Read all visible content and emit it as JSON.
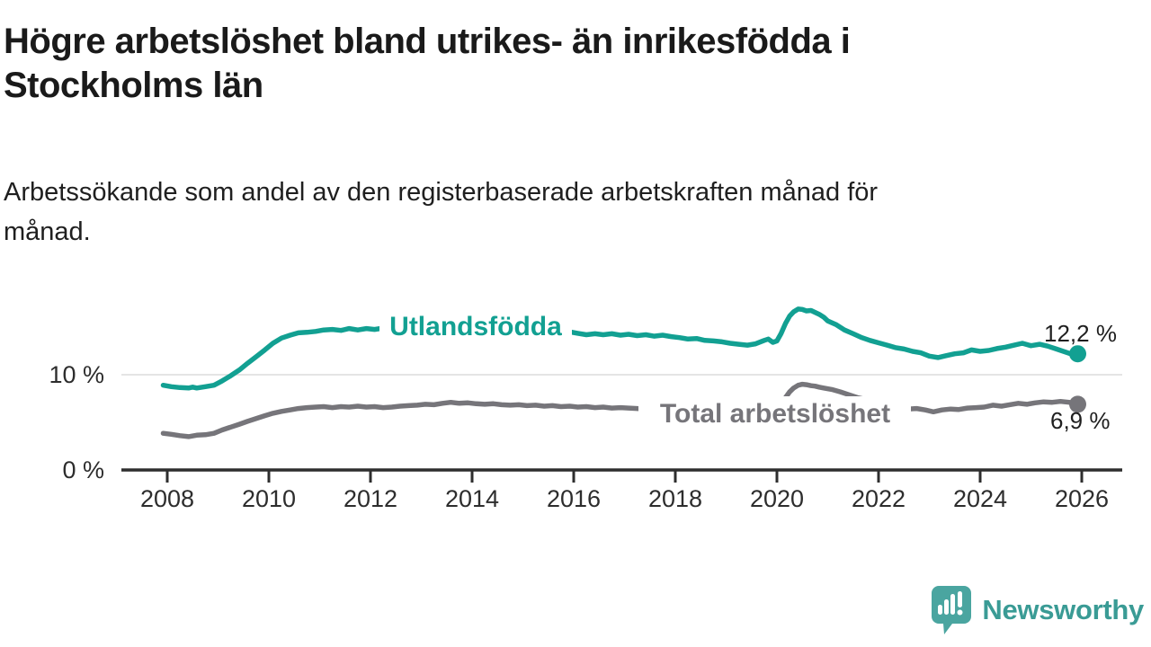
{
  "header": {
    "title_lines": [
      "Högre arbetslöshet bland utrikes- än inrikesfödda i",
      "Stockholms län"
    ],
    "subtitle_lines": [
      "Arbetssökande som andel av den registerbaserade arbetskraften månad för",
      "månad."
    ]
  },
  "chart_data": {
    "type": "line",
    "title": "Högre arbetslöshet bland utrikes- än inrikesfödda i Stockholms län",
    "subtitle": "Arbetssökande som andel av den registerbaserade arbetskraften månad för månad.",
    "unit": "%",
    "grid": "horizontal-only",
    "legend": "inline-line-labels",
    "x_axis": {
      "ticks": [
        2008,
        2010,
        2012,
        2014,
        2016,
        2018,
        2020,
        2022,
        2024,
        2026
      ],
      "range": [
        2007.1,
        2026.8
      ]
    },
    "y_axis": {
      "ticks": [
        {
          "value": 0,
          "label": "0 %"
        },
        {
          "value": 10,
          "label": "10 %"
        }
      ],
      "gridlines": [
        10
      ],
      "range": [
        0,
        18
      ]
    },
    "series": [
      {
        "name": "Utlandsfödda",
        "color": "#12a092",
        "end_value": 12.2,
        "end_label": "12,2 %",
        "points": [
          [
            2007.92,
            8.9
          ],
          [
            2008.08,
            8.75
          ],
          [
            2008.25,
            8.65
          ],
          [
            2008.42,
            8.6
          ],
          [
            2008.5,
            8.7
          ],
          [
            2008.58,
            8.6
          ],
          [
            2008.75,
            8.75
          ],
          [
            2008.92,
            8.9
          ],
          [
            2009.08,
            9.35
          ],
          [
            2009.25,
            9.9
          ],
          [
            2009.42,
            10.5
          ],
          [
            2009.58,
            11.2
          ],
          [
            2009.75,
            11.9
          ],
          [
            2009.92,
            12.6
          ],
          [
            2010.08,
            13.3
          ],
          [
            2010.25,
            13.85
          ],
          [
            2010.42,
            14.15
          ],
          [
            2010.58,
            14.4
          ],
          [
            2010.75,
            14.45
          ],
          [
            2010.92,
            14.55
          ],
          [
            2011.08,
            14.7
          ],
          [
            2011.25,
            14.75
          ],
          [
            2011.42,
            14.65
          ],
          [
            2011.58,
            14.85
          ],
          [
            2011.75,
            14.7
          ],
          [
            2011.92,
            14.85
          ],
          [
            2012.08,
            14.75
          ],
          [
            2012.25,
            14.9
          ],
          [
            2012.5,
            14.95
          ],
          [
            2012.75,
            15.0
          ],
          [
            2013.0,
            14.9
          ],
          [
            2013.25,
            15.05
          ],
          [
            2013.5,
            14.95
          ],
          [
            2013.75,
            15.05
          ],
          [
            2014.0,
            14.9
          ],
          [
            2014.25,
            14.85
          ],
          [
            2014.5,
            14.9
          ],
          [
            2014.75,
            14.8
          ],
          [
            2015.0,
            14.7
          ],
          [
            2015.25,
            14.75
          ],
          [
            2015.5,
            14.65
          ],
          [
            2015.75,
            14.55
          ],
          [
            2015.92,
            14.5
          ],
          [
            2016.08,
            14.35
          ],
          [
            2016.25,
            14.2
          ],
          [
            2016.42,
            14.3
          ],
          [
            2016.58,
            14.2
          ],
          [
            2016.75,
            14.3
          ],
          [
            2016.92,
            14.15
          ],
          [
            2017.08,
            14.25
          ],
          [
            2017.25,
            14.1
          ],
          [
            2017.42,
            14.2
          ],
          [
            2017.58,
            14.05
          ],
          [
            2017.75,
            14.15
          ],
          [
            2017.92,
            14.0
          ],
          [
            2018.08,
            13.9
          ],
          [
            2018.25,
            13.75
          ],
          [
            2018.42,
            13.8
          ],
          [
            2018.58,
            13.6
          ],
          [
            2018.75,
            13.55
          ],
          [
            2018.92,
            13.45
          ],
          [
            2019.08,
            13.3
          ],
          [
            2019.25,
            13.2
          ],
          [
            2019.42,
            13.1
          ],
          [
            2019.58,
            13.25
          ],
          [
            2019.75,
            13.6
          ],
          [
            2019.83,
            13.75
          ],
          [
            2019.92,
            13.4
          ],
          [
            2020.0,
            13.55
          ],
          [
            2020.08,
            14.3
          ],
          [
            2020.17,
            15.4
          ],
          [
            2020.25,
            16.15
          ],
          [
            2020.33,
            16.6
          ],
          [
            2020.42,
            16.9
          ],
          [
            2020.5,
            16.85
          ],
          [
            2020.58,
            16.7
          ],
          [
            2020.67,
            16.75
          ],
          [
            2020.75,
            16.55
          ],
          [
            2020.83,
            16.35
          ],
          [
            2020.92,
            16.05
          ],
          [
            2021.0,
            15.65
          ],
          [
            2021.17,
            15.25
          ],
          [
            2021.33,
            14.7
          ],
          [
            2021.5,
            14.3
          ],
          [
            2021.67,
            13.9
          ],
          [
            2021.83,
            13.6
          ],
          [
            2022.0,
            13.35
          ],
          [
            2022.17,
            13.1
          ],
          [
            2022.33,
            12.85
          ],
          [
            2022.5,
            12.7
          ],
          [
            2022.67,
            12.45
          ],
          [
            2022.83,
            12.3
          ],
          [
            2023.0,
            11.95
          ],
          [
            2023.17,
            11.8
          ],
          [
            2023.33,
            12.0
          ],
          [
            2023.5,
            12.2
          ],
          [
            2023.67,
            12.3
          ],
          [
            2023.83,
            12.6
          ],
          [
            2024.0,
            12.45
          ],
          [
            2024.17,
            12.55
          ],
          [
            2024.33,
            12.75
          ],
          [
            2024.5,
            12.9
          ],
          [
            2024.67,
            13.1
          ],
          [
            2024.83,
            13.3
          ],
          [
            2025.0,
            13.05
          ],
          [
            2025.17,
            13.2
          ],
          [
            2025.33,
            13.0
          ],
          [
            2025.5,
            12.7
          ],
          [
            2025.67,
            12.4
          ],
          [
            2025.83,
            12.1
          ],
          [
            2025.92,
            12.2
          ]
        ]
      },
      {
        "name": "Total arbetslöshet",
        "color": "#76757a",
        "end_value": 6.9,
        "end_label": "6,9 %",
        "points": [
          [
            2007.92,
            3.85
          ],
          [
            2008.08,
            3.75
          ],
          [
            2008.25,
            3.6
          ],
          [
            2008.42,
            3.5
          ],
          [
            2008.58,
            3.65
          ],
          [
            2008.75,
            3.7
          ],
          [
            2008.92,
            3.85
          ],
          [
            2009.08,
            4.2
          ],
          [
            2009.25,
            4.5
          ],
          [
            2009.42,
            4.8
          ],
          [
            2009.58,
            5.1
          ],
          [
            2009.75,
            5.4
          ],
          [
            2009.92,
            5.7
          ],
          [
            2010.08,
            5.95
          ],
          [
            2010.25,
            6.15
          ],
          [
            2010.42,
            6.3
          ],
          [
            2010.58,
            6.45
          ],
          [
            2010.75,
            6.55
          ],
          [
            2010.92,
            6.6
          ],
          [
            2011.08,
            6.65
          ],
          [
            2011.25,
            6.55
          ],
          [
            2011.42,
            6.65
          ],
          [
            2011.58,
            6.6
          ],
          [
            2011.75,
            6.7
          ],
          [
            2011.92,
            6.6
          ],
          [
            2012.08,
            6.65
          ],
          [
            2012.25,
            6.55
          ],
          [
            2012.42,
            6.6
          ],
          [
            2012.58,
            6.7
          ],
          [
            2012.75,
            6.75
          ],
          [
            2012.92,
            6.8
          ],
          [
            2013.08,
            6.9
          ],
          [
            2013.25,
            6.85
          ],
          [
            2013.42,
            7.0
          ],
          [
            2013.58,
            7.1
          ],
          [
            2013.75,
            7.0
          ],
          [
            2013.92,
            7.05
          ],
          [
            2014.08,
            6.95
          ],
          [
            2014.25,
            6.9
          ],
          [
            2014.42,
            6.95
          ],
          [
            2014.58,
            6.85
          ],
          [
            2014.75,
            6.8
          ],
          [
            2014.92,
            6.85
          ],
          [
            2015.08,
            6.75
          ],
          [
            2015.25,
            6.8
          ],
          [
            2015.42,
            6.7
          ],
          [
            2015.58,
            6.75
          ],
          [
            2015.75,
            6.65
          ],
          [
            2015.92,
            6.7
          ],
          [
            2016.08,
            6.6
          ],
          [
            2016.25,
            6.65
          ],
          [
            2016.42,
            6.55
          ],
          [
            2016.58,
            6.6
          ],
          [
            2016.75,
            6.5
          ],
          [
            2016.92,
            6.55
          ],
          [
            2017.08,
            6.5
          ],
          [
            2017.25,
            6.45
          ],
          [
            2017.42,
            6.4
          ],
          [
            2017.58,
            6.35
          ],
          [
            2017.75,
            6.3
          ],
          [
            2017.92,
            6.3
          ],
          [
            2018.08,
            6.25
          ],
          [
            2018.25,
            6.2
          ],
          [
            2018.42,
            6.25
          ],
          [
            2018.58,
            6.2
          ],
          [
            2018.75,
            6.15
          ],
          [
            2018.92,
            6.2
          ],
          [
            2019.08,
            6.25
          ],
          [
            2019.25,
            6.2
          ],
          [
            2019.42,
            6.3
          ],
          [
            2019.58,
            6.35
          ],
          [
            2019.75,
            6.4
          ],
          [
            2019.92,
            6.5
          ],
          [
            2020.08,
            6.9
          ],
          [
            2020.17,
            7.6
          ],
          [
            2020.25,
            8.2
          ],
          [
            2020.33,
            8.6
          ],
          [
            2020.42,
            8.9
          ],
          [
            2020.5,
            9.0
          ],
          [
            2020.58,
            8.95
          ],
          [
            2020.67,
            8.85
          ],
          [
            2020.75,
            8.8
          ],
          [
            2020.83,
            8.7
          ],
          [
            2020.92,
            8.6
          ],
          [
            2021.08,
            8.45
          ],
          [
            2021.25,
            8.2
          ],
          [
            2021.42,
            7.9
          ],
          [
            2021.58,
            7.6
          ],
          [
            2021.75,
            7.4
          ],
          [
            2021.92,
            7.1
          ],
          [
            2022.08,
            6.9
          ],
          [
            2022.25,
            6.7
          ],
          [
            2022.42,
            6.5
          ],
          [
            2022.58,
            6.4
          ],
          [
            2022.75,
            6.45
          ],
          [
            2022.92,
            6.3
          ],
          [
            2023.08,
            6.1
          ],
          [
            2023.25,
            6.3
          ],
          [
            2023.42,
            6.4
          ],
          [
            2023.58,
            6.35
          ],
          [
            2023.75,
            6.5
          ],
          [
            2023.92,
            6.55
          ],
          [
            2024.08,
            6.6
          ],
          [
            2024.25,
            6.8
          ],
          [
            2024.42,
            6.7
          ],
          [
            2024.58,
            6.85
          ],
          [
            2024.75,
            7.0
          ],
          [
            2024.92,
            6.9
          ],
          [
            2025.08,
            7.05
          ],
          [
            2025.25,
            7.15
          ],
          [
            2025.42,
            7.1
          ],
          [
            2025.58,
            7.2
          ],
          [
            2025.75,
            7.1
          ],
          [
            2025.92,
            6.9
          ]
        ]
      }
    ]
  },
  "footer": {
    "brand": "Newsworthy",
    "logo_icon": "speech-bubble-bar-chart-icon",
    "brand_color": "#3a9b95",
    "logo_fill": "#4aa5a0"
  }
}
